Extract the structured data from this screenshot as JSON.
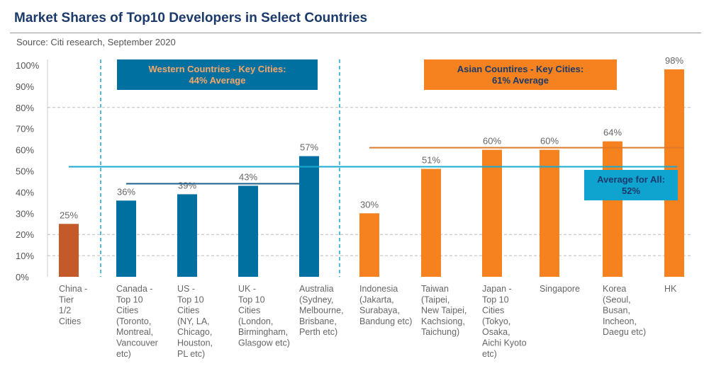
{
  "title": "Market Shares of Top10 Developers in Select Countries",
  "source": "Source: Citi research, September 2020",
  "chart_data": {
    "type": "bar",
    "categories": [
      [
        "China -",
        "Tier",
        "1/2",
        "Cities"
      ],
      [
        "Canada -",
        "Top 10",
        "Cities",
        "(Toronto,",
        "Montreal,",
        "Vancouver",
        "etc)"
      ],
      [
        "US -",
        "Top 10",
        "Cities",
        "(NY, LA,",
        "Chicago,",
        "Houston,",
        "PL etc)"
      ],
      [
        "UK -",
        "Top 10",
        "Cities",
        "(London,",
        "Birmingham,",
        "Glasgow etc)"
      ],
      [
        "Australia",
        "(Sydney,",
        "Melbourne,",
        "Brisbane,",
        "Perth etc)"
      ],
      [
        "Indonesia",
        "(Jakarta,",
        "Surabaya,",
        "Bandung etc)"
      ],
      [
        "Taiwan",
        "(Taipei,",
        "New Taipei,",
        "Kachsiong,",
        "Taichung)"
      ],
      [
        "Japan -",
        "Top 10",
        "Cities",
        "(Tokyo,",
        "Osaka,",
        "Aichi Kyoto",
        "etc)"
      ],
      [
        "Singapore"
      ],
      [
        "Korea",
        "(Seoul,",
        "Busan,",
        "Incheon,",
        "Daegu etc)"
      ],
      [
        "HK"
      ]
    ],
    "values": [
      25,
      36,
      39,
      43,
      57,
      30,
      51,
      60,
      60,
      64,
      98
    ],
    "value_labels": [
      "25%",
      "36%",
      "39%",
      "43%",
      "57%",
      "30%",
      "51%",
      "60%",
      "60%",
      "64%",
      "98%"
    ],
    "groups": [
      "china",
      "western",
      "western",
      "western",
      "western",
      "asian",
      "asian",
      "asian",
      "asian",
      "asian",
      "asian"
    ],
    "colors": {
      "china": "#c45a2a",
      "western": "#0070a0",
      "asian": "#f5821f",
      "all_line": "#19a8d0",
      "avg_box": "#0fa3d0"
    },
    "ylim": [
      0,
      100
    ],
    "yticks": [
      "0%",
      "10%",
      "20%",
      "30%",
      "40%",
      "50%",
      "60%",
      "70%",
      "80%",
      "90%",
      "100%"
    ],
    "averages": {
      "all": 52,
      "western": 44,
      "asian": 61
    },
    "annotations": {
      "western": [
        "Western Countries - Key Cities:",
        "44% Average"
      ],
      "asian": [
        "Asian Countires - Key Cities:",
        "61% Average"
      ],
      "all": [
        "Average for All:",
        "52%"
      ]
    }
  }
}
